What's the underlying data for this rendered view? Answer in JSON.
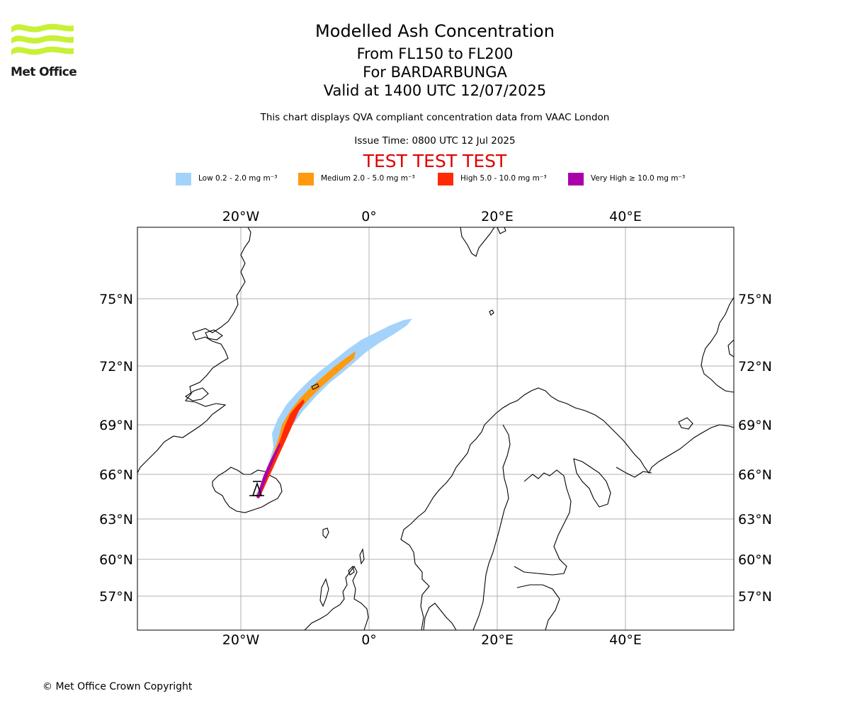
{
  "header": {
    "logo_text": "Met Office",
    "title": "Modelled Ash Concentration",
    "levels": "From FL150 to FL200",
    "volcano": "For BARDARBUNGA",
    "valid": "Valid at 1400 UTC 12/07/2025",
    "note": "This chart displays QVA compliant concentration data from VAAC London",
    "issue": "Issue Time: 0800 UTC 12 Jul 2025",
    "test_banner": "TEST TEST TEST"
  },
  "legend": [
    {
      "label": "Low 0.2 - 2.0 mg m⁻³",
      "color": "#a3d3fb"
    },
    {
      "label": "Medium 2.0 - 5.0 mg m⁻³",
      "color": "#ff9a10"
    },
    {
      "label": "High 5.0 - 10.0 mg m⁻³",
      "color": "#ff2a05"
    },
    {
      "label": "Very High  ≥  10.0 mg m⁻³",
      "color": "#aa00aa"
    }
  ],
  "map": {
    "lon_labels": [
      "20°W",
      "0°",
      "20°E",
      "40°E"
    ],
    "lat_labels": [
      "75°N",
      "72°N",
      "69°N",
      "66°N",
      "63°N",
      "60°N",
      "57°N"
    ],
    "source_marker": "volcano-triangle"
  },
  "footer": {
    "copyright": "© Met Office Crown Copyright"
  }
}
